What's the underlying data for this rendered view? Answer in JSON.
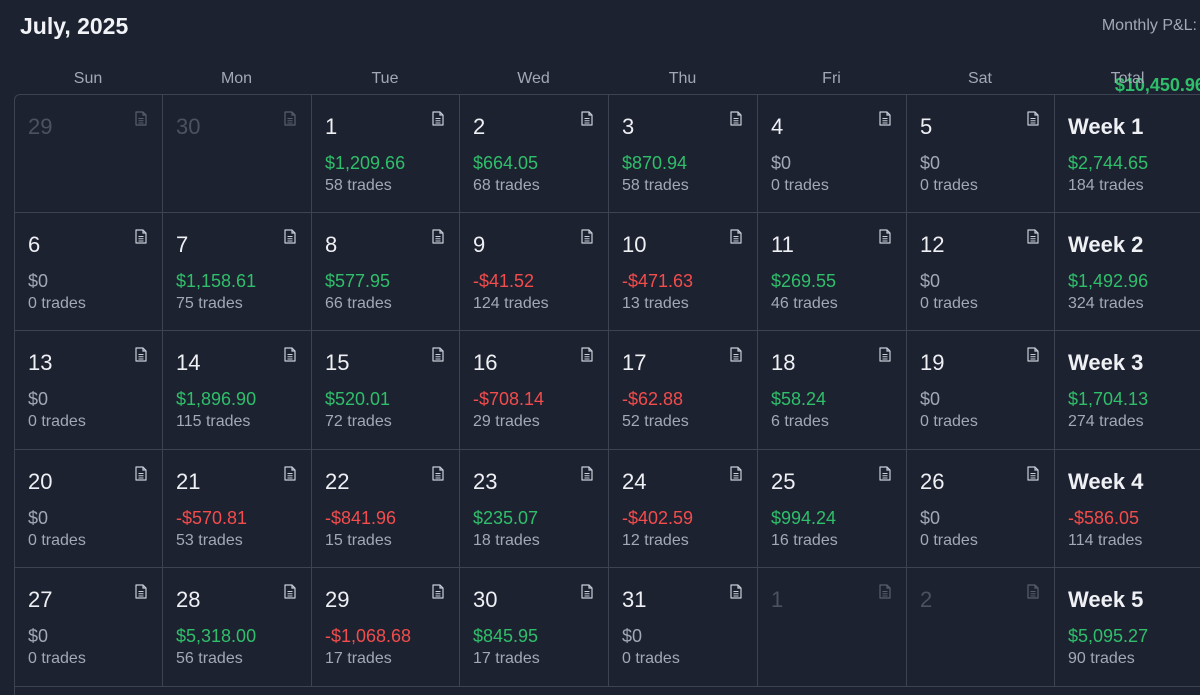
{
  "header": {
    "title": "July, 2025",
    "pnl_label": "Monthly P&L:",
    "pnl_value": "$10,450.96"
  },
  "weekdays": [
    "Sun",
    "Mon",
    "Tue",
    "Wed",
    "Thu",
    "Fri",
    "Sat",
    "Total"
  ],
  "colors": {
    "positive": "#2fbf6a",
    "negative": "#f24c4c",
    "neutral": "#a2a9b6"
  },
  "weeks": [
    {
      "days": [
        {
          "day": "29",
          "muted": true
        },
        {
          "day": "30",
          "muted": true
        },
        {
          "day": "1",
          "amount": "$1,209.66",
          "trades": "58 trades",
          "tone": "pos"
        },
        {
          "day": "2",
          "amount": "$664.05",
          "trades": "68 trades",
          "tone": "pos"
        },
        {
          "day": "3",
          "amount": "$870.94",
          "trades": "58 trades",
          "tone": "pos"
        },
        {
          "day": "4",
          "amount": "$0",
          "trades": "0 trades",
          "tone": "zero"
        },
        {
          "day": "5",
          "amount": "$0",
          "trades": "0 trades",
          "tone": "zero"
        }
      ],
      "total": {
        "label": "Week 1",
        "amount": "$2,744.65",
        "trades": "184 trades",
        "tone": "pos"
      }
    },
    {
      "days": [
        {
          "day": "6",
          "amount": "$0",
          "trades": "0 trades",
          "tone": "zero"
        },
        {
          "day": "7",
          "amount": "$1,158.61",
          "trades": "75 trades",
          "tone": "pos"
        },
        {
          "day": "8",
          "amount": "$577.95",
          "trades": "66 trades",
          "tone": "pos"
        },
        {
          "day": "9",
          "amount": "-$41.52",
          "trades": "124 trades",
          "tone": "neg"
        },
        {
          "day": "10",
          "amount": "-$471.63",
          "trades": "13 trades",
          "tone": "neg"
        },
        {
          "day": "11",
          "amount": "$269.55",
          "trades": "46 trades",
          "tone": "pos"
        },
        {
          "day": "12",
          "amount": "$0",
          "trades": "0 trades",
          "tone": "zero"
        }
      ],
      "total": {
        "label": "Week 2",
        "amount": "$1,492.96",
        "trades": "324 trades",
        "tone": "pos"
      }
    },
    {
      "days": [
        {
          "day": "13",
          "amount": "$0",
          "trades": "0 trades",
          "tone": "zero"
        },
        {
          "day": "14",
          "amount": "$1,896.90",
          "trades": "115 trades",
          "tone": "pos"
        },
        {
          "day": "15",
          "amount": "$520.01",
          "trades": "72 trades",
          "tone": "pos"
        },
        {
          "day": "16",
          "amount": "-$708.14",
          "trades": "29 trades",
          "tone": "neg"
        },
        {
          "day": "17",
          "amount": "-$62.88",
          "trades": "52 trades",
          "tone": "neg"
        },
        {
          "day": "18",
          "amount": "$58.24",
          "trades": "6 trades",
          "tone": "pos"
        },
        {
          "day": "19",
          "amount": "$0",
          "trades": "0 trades",
          "tone": "zero"
        }
      ],
      "total": {
        "label": "Week 3",
        "amount": "$1,704.13",
        "trades": "274 trades",
        "tone": "pos"
      }
    },
    {
      "days": [
        {
          "day": "20",
          "amount": "$0",
          "trades": "0 trades",
          "tone": "zero"
        },
        {
          "day": "21",
          "amount": "-$570.81",
          "trades": "53 trades",
          "tone": "neg"
        },
        {
          "day": "22",
          "amount": "-$841.96",
          "trades": "15 trades",
          "tone": "neg"
        },
        {
          "day": "23",
          "amount": "$235.07",
          "trades": "18 trades",
          "tone": "pos"
        },
        {
          "day": "24",
          "amount": "-$402.59",
          "trades": "12 trades",
          "tone": "neg"
        },
        {
          "day": "25",
          "amount": "$994.24",
          "trades": "16 trades",
          "tone": "pos"
        },
        {
          "day": "26",
          "amount": "$0",
          "trades": "0 trades",
          "tone": "zero"
        }
      ],
      "total": {
        "label": "Week 4",
        "amount": "-$586.05",
        "trades": "114 trades",
        "tone": "neg"
      }
    },
    {
      "days": [
        {
          "day": "27",
          "amount": "$0",
          "trades": "0 trades",
          "tone": "zero"
        },
        {
          "day": "28",
          "amount": "$5,318.00",
          "trades": "56 trades",
          "tone": "pos"
        },
        {
          "day": "29",
          "amount": "-$1,068.68",
          "trades": "17 trades",
          "tone": "neg"
        },
        {
          "day": "30",
          "amount": "$845.95",
          "trades": "17 trades",
          "tone": "pos"
        },
        {
          "day": "31",
          "amount": "$0",
          "trades": "0 trades",
          "tone": "zero"
        },
        {
          "day": "1",
          "muted": true
        },
        {
          "day": "2",
          "muted": true
        }
      ],
      "total": {
        "label": "Week 5",
        "amount": "$5,095.27",
        "trades": "90 trades",
        "tone": "pos"
      }
    }
  ]
}
